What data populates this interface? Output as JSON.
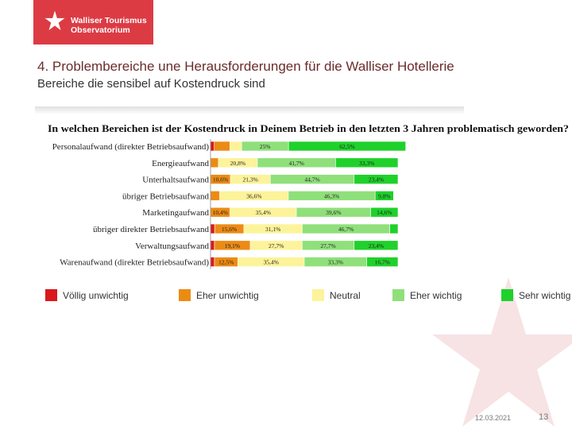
{
  "logo": {
    "line1": "Walliser Tourismus",
    "line2": "Observatorium"
  },
  "slide": {
    "title": "4. Problembereiche une Herausforderungen für die Walliser Hotellerie",
    "subtitle": "Bereiche die sensibel auf Kostendruck sind"
  },
  "footer": {
    "date": "12.03.2021",
    "page": "13"
  },
  "colors": {
    "brand": "#dc3b44",
    "voellig_unwichtig": "#d9191c",
    "eher_unwichtig": "#ec8b14",
    "neutral": "#fdf39a",
    "eher_wichtig": "#8fe07a",
    "sehr_wichtig": "#1fd12a"
  },
  "chart_data": {
    "type": "bar",
    "orientation": "horizontal",
    "stacked": true,
    "percent": true,
    "title": "In welchen Bereichen ist der Kostendruck in Deinem Betrieb in den letzten 3 Jahren problematisch geworden?",
    "categories": [
      "Personalaufwand (direkter Betriebsaufwand)",
      "Energieaufwand",
      "Unterhaltsaufwand",
      "übriger Betriebsaufwand",
      "Marketingaufwand",
      "übriger direkter Betriebsaufwand",
      "Verwaltungsaufwand",
      "Warenaufwand (direkter Betriebsaufwand)"
    ],
    "series": [
      {
        "name": "Völlig unwichtig",
        "color": "#d9191c",
        "values": [
          2,
          0,
          0,
          0,
          0,
          2.2,
          2.1,
          2.1
        ],
        "labels": [
          "",
          "",
          "",
          "",
          "",
          "",
          "",
          ""
        ]
      },
      {
        "name": "Eher unwichtig",
        "color": "#ec8b14",
        "values": [
          8.3,
          4.2,
          10.6,
          4.9,
          10.4,
          15.6,
          19.1,
          12.5
        ],
        "labels": [
          "",
          "",
          "10,6%",
          "",
          "10,4%",
          "15,6%",
          "19,1%",
          "12,5%"
        ]
      },
      {
        "name": "Neutral",
        "color": "#fdf39a",
        "values": [
          6.3,
          20.8,
          21.3,
          36.6,
          35.4,
          31.1,
          27.7,
          35.4
        ],
        "labels": [
          "",
          "20,8%",
          "21,3%",
          "36,6%",
          "35,4%",
          "31,1%",
          "27,7%",
          "35,4%"
        ]
      },
      {
        "name": "Eher wichtig",
        "color": "#8fe07a",
        "values": [
          25,
          41.7,
          44.7,
          46.3,
          39.6,
          46.7,
          27.7,
          33.3
        ],
        "labels": [
          "25%",
          "41,7%",
          "44,7%",
          "46,3%",
          "39,6%",
          "46,7%",
          "27,7%",
          "33,3%"
        ]
      },
      {
        "name": "Sehr wichtig",
        "color": "#1fd12a",
        "values": [
          62.5,
          33.3,
          23.4,
          9.8,
          14.6,
          4.4,
          23.4,
          16.7
        ],
        "labels": [
          "62,5%",
          "33,3%",
          "23,4%",
          "9,8%",
          "14,6%",
          "",
          "23,4%",
          "16,7%"
        ]
      }
    ],
    "xlim": [
      0,
      100
    ],
    "legend": [
      "Völlig unwichtig",
      "Eher unwichtig",
      "Neutral",
      "Eher wichtig",
      "Sehr wichtig"
    ],
    "legend_position": "bottom"
  }
}
